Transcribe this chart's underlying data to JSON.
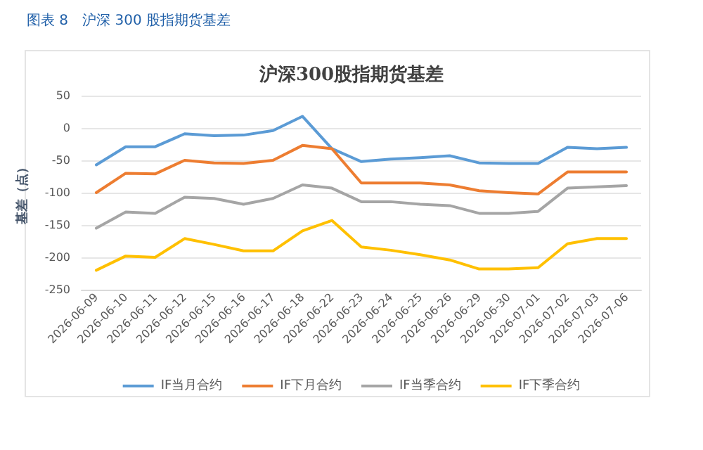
{
  "chart_data": {
    "type": "line",
    "title": "沪深300股指期货基差",
    "subtitle": "图表 8　沪深 300 股指期货基差",
    "ylabel": "基差（点）",
    "categories": [
      "2026-06-09",
      "2026-06-10",
      "2026-06-11",
      "2026-06-12",
      "2026-06-15",
      "2026-06-16",
      "2026-06-17",
      "2026-06-18",
      "2026-06-22",
      "2026-06-23",
      "2026-06-24",
      "2026-06-25",
      "2026-06-26",
      "2026-06-29",
      "2026-06-30",
      "2026-07-01",
      "2026-07-02",
      "2026-07-03",
      "2026-07-06"
    ],
    "series": [
      {
        "name": "IF当月合约",
        "color": "#5b9bd5",
        "values": [
          -57,
          -29,
          -29,
          -9,
          -12,
          -11,
          -4,
          18,
          -32,
          -52,
          -48,
          -46,
          -43,
          -54,
          -55,
          -55,
          -30,
          -32,
          -30
        ]
      },
      {
        "name": "IF下月合约",
        "color": "#ed7d31",
        "values": [
          -100,
          -70,
          -71,
          -50,
          -54,
          -55,
          -50,
          -27,
          -32,
          -85,
          -85,
          -85,
          -88,
          -97,
          -100,
          -102,
          -68,
          -68,
          -68
        ]
      },
      {
        "name": "IF当季合约",
        "color": "#a5a5a5",
        "values": [
          -155,
          -130,
          -132,
          -107,
          -109,
          -118,
          -109,
          -88,
          -93,
          -114,
          -114,
          -118,
          -120,
          -132,
          -132,
          -129,
          -93,
          -91,
          -89
        ]
      },
      {
        "name": "IF下季合约",
        "color": "#ffc000",
        "values": [
          -220,
          -198,
          -200,
          -171,
          -180,
          -190,
          -190,
          -159,
          -143,
          -184,
          -189,
          -196,
          -204,
          -218,
          -218,
          -216,
          -179,
          -171,
          -171
        ]
      }
    ],
    "ylim": [
      -250,
      50
    ],
    "yticks": [
      -250,
      -200,
      -150,
      -100,
      -50,
      0,
      50
    ],
    "grid": "y",
    "legend": "bottom",
    "marker": "none",
    "line_style": "solid"
  }
}
